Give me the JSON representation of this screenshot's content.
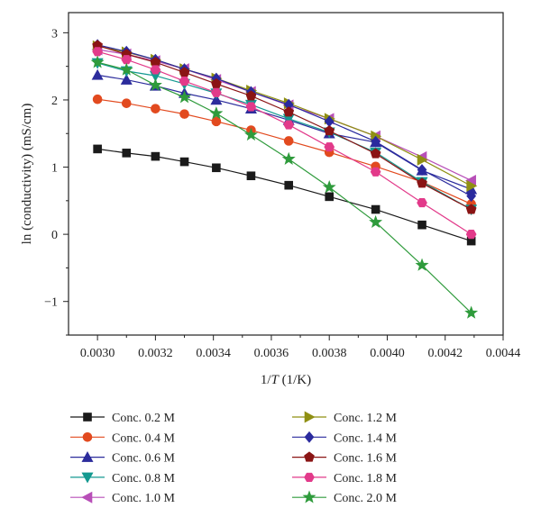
{
  "chart_data": {
    "type": "line",
    "xlabel_parts": [
      "1/",
      "T",
      " (1/K)"
    ],
    "ylabel": "ln (conductivity) (mS/cm)",
    "xlim": [
      0.0029,
      0.0044
    ],
    "ylim": [
      -1.5,
      3.3
    ],
    "xticks": [
      {
        "value": 0.003,
        "label": "0.0030"
      },
      {
        "value": 0.0032,
        "label": "0.0032"
      },
      {
        "value": 0.0034,
        "label": "0.0034"
      },
      {
        "value": 0.0036,
        "label": "0.0036"
      },
      {
        "value": 0.0038,
        "label": "0.0038"
      },
      {
        "value": 0.004,
        "label": "0.0040"
      },
      {
        "value": 0.0042,
        "label": "0.0042"
      },
      {
        "value": 0.0044,
        "label": "0.0044"
      }
    ],
    "yticks": [
      {
        "value": 3,
        "label": "3"
      },
      {
        "value": 2,
        "label": "2"
      },
      {
        "value": 1,
        "label": "1"
      },
      {
        "value": 0,
        "label": "0"
      },
      {
        "value": -1,
        "label": "−1"
      }
    ],
    "grid": false,
    "legend_position": "bottom",
    "x": [
      0.003,
      0.0031,
      0.0032,
      0.0033,
      0.00341,
      0.00353,
      0.00366,
      0.0038,
      0.00396,
      0.00412,
      0.00429
    ],
    "series": [
      {
        "name": "Conc. 0.2 M",
        "color": "#1a1a1a",
        "marker": "square",
        "values": [
          1.27,
          1.21,
          1.16,
          1.08,
          0.99,
          0.87,
          0.73,
          0.56,
          0.37,
          0.14,
          -0.1
        ]
      },
      {
        "name": "Conc. 0.4 M",
        "color": "#e24a1f",
        "marker": "circle",
        "values": [
          2.01,
          1.95,
          1.87,
          1.79,
          1.68,
          1.55,
          1.39,
          1.22,
          1.01,
          0.78,
          0.45
        ]
      },
      {
        "name": "Conc. 0.6 M",
        "color": "#2c2c9c",
        "marker": "triangle-up",
        "values": [
          2.37,
          2.3,
          2.21,
          2.1,
          2.0,
          1.87,
          1.7,
          1.5,
          1.37,
          0.95,
          0.67
        ]
      },
      {
        "name": "Conc. 0.8 M",
        "color": "#139990",
        "marker": "triangle-down",
        "values": [
          2.55,
          2.43,
          2.36,
          2.24,
          2.1,
          1.93,
          1.72,
          1.52,
          1.22,
          0.78,
          0.37
        ]
      },
      {
        "name": "Conc. 1.0 M",
        "color": "#b84fb8",
        "marker": "triangle-left",
        "values": [
          2.75,
          2.68,
          2.58,
          2.46,
          2.3,
          2.12,
          1.92,
          1.72,
          1.46,
          1.15,
          0.8
        ]
      },
      {
        "name": "Conc. 1.2 M",
        "color": "#8f8f12",
        "marker": "triangle-right",
        "values": [
          2.8,
          2.71,
          2.6,
          2.46,
          2.32,
          2.14,
          1.95,
          1.72,
          1.46,
          1.11,
          0.72
        ]
      },
      {
        "name": "Conc. 1.4 M",
        "color": "#2a2a9e",
        "marker": "diamond",
        "values": [
          2.82,
          2.72,
          2.6,
          2.46,
          2.32,
          2.12,
          1.93,
          1.68,
          1.38,
          0.96,
          0.57
        ]
      },
      {
        "name": "Conc. 1.6 M",
        "color": "#8a1414",
        "marker": "pentagon",
        "values": [
          2.81,
          2.68,
          2.56,
          2.41,
          2.24,
          2.06,
          1.82,
          1.54,
          1.2,
          0.76,
          0.37
        ]
      },
      {
        "name": "Conc. 1.8 M",
        "color": "#e23a8a",
        "marker": "hexagon",
        "values": [
          2.72,
          2.6,
          2.45,
          2.28,
          2.11,
          1.9,
          1.63,
          1.3,
          0.93,
          0.47,
          0.0
        ]
      },
      {
        "name": "Conc. 2.0 M",
        "color": "#2f9b3c",
        "marker": "star",
        "values": [
          2.56,
          2.45,
          2.22,
          2.04,
          1.8,
          1.48,
          1.12,
          0.7,
          0.18,
          -0.46,
          -1.17
        ]
      }
    ]
  }
}
